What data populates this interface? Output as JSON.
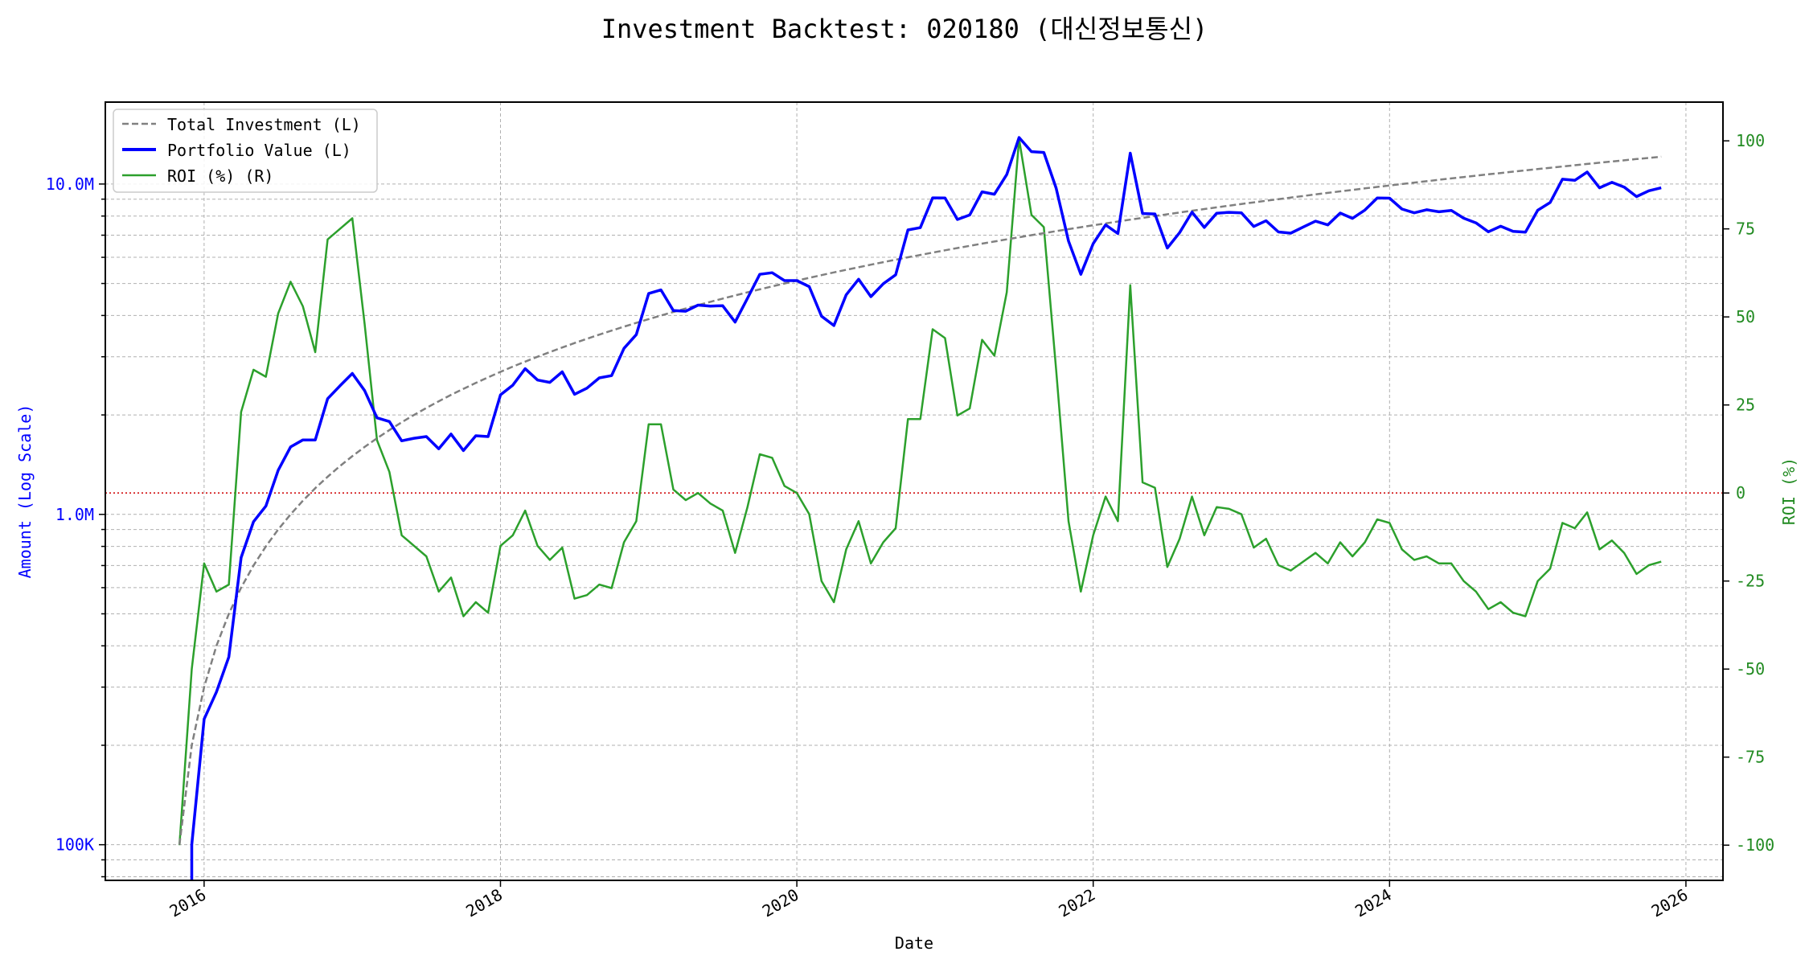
{
  "chart_data": {
    "type": "line",
    "title": "Investment Backtest: 020180 (대신정보통신)",
    "xlabel": "Date",
    "ylabel_left": "Amount (Log Scale)",
    "ylabel_right": "ROI (%)",
    "left_scale": "log",
    "left_ylim": [
      78000,
      17700000
    ],
    "right_ylim": [
      -110,
      111
    ],
    "xlim": [
      "2015-05",
      "2026-04"
    ],
    "grid": true,
    "legend_position": "top-left",
    "x_ticks": [
      "2016",
      "2018",
      "2020",
      "2022",
      "2024",
      "2026"
    ],
    "left_ticks": [
      {
        "value": 100000,
        "label": "100K"
      },
      {
        "value": 1000000,
        "label": "1.0M"
      },
      {
        "value": 10000000,
        "label": "10.0M"
      }
    ],
    "right_ticks": [
      "-100",
      "-75",
      "-50",
      "-25",
      "0",
      "25",
      "50",
      "75",
      "100"
    ],
    "reference_line": {
      "axis": "right",
      "value": 0,
      "color": "#d62728",
      "style": "dotted"
    },
    "colors": {
      "left_axis": "#0000ff",
      "right_axis": "#228b22",
      "investment": "#808080",
      "portfolio": "#0000ff",
      "roi": "#2ca02c"
    },
    "dates": [
      "2015-11",
      "2015-12",
      "2016-01",
      "2016-02",
      "2016-03",
      "2016-04",
      "2016-05",
      "2016-06",
      "2016-07",
      "2016-08",
      "2016-09",
      "2016-10",
      "2016-11",
      "2016-12",
      "2017-01",
      "2017-02",
      "2017-03",
      "2017-04",
      "2017-05",
      "2017-06",
      "2017-07",
      "2017-08",
      "2017-09",
      "2017-10",
      "2017-11",
      "2017-12",
      "2018-01",
      "2018-02",
      "2018-03",
      "2018-04",
      "2018-05",
      "2018-06",
      "2018-07",
      "2018-08",
      "2018-09",
      "2018-10",
      "2018-11",
      "2018-12",
      "2019-01",
      "2019-02",
      "2019-03",
      "2019-04",
      "2019-05",
      "2019-06",
      "2019-07",
      "2019-08",
      "2019-09",
      "2019-10",
      "2019-11",
      "2019-12",
      "2020-01",
      "2020-02",
      "2020-03",
      "2020-04",
      "2020-05",
      "2020-06",
      "2020-07",
      "2020-08",
      "2020-09",
      "2020-10",
      "2020-11",
      "2020-12",
      "2021-01",
      "2021-02",
      "2021-03",
      "2021-04",
      "2021-05",
      "2021-06",
      "2021-07",
      "2021-08",
      "2021-09",
      "2021-10",
      "2021-11",
      "2021-12",
      "2022-01",
      "2022-02",
      "2022-03",
      "2022-04",
      "2022-05",
      "2022-06",
      "2022-07",
      "2022-08",
      "2022-09",
      "2022-10",
      "2022-11",
      "2022-12",
      "2023-01",
      "2023-02",
      "2023-03",
      "2023-04",
      "2023-05",
      "2023-06",
      "2023-07",
      "2023-08",
      "2023-09",
      "2023-10",
      "2023-11",
      "2023-12",
      "2024-01",
      "2024-02",
      "2024-03",
      "2024-04",
      "2024-05",
      "2024-06",
      "2024-07",
      "2024-08",
      "2024-09",
      "2024-10",
      "2024-11",
      "2024-12",
      "2025-01",
      "2025-02",
      "2025-03",
      "2025-04",
      "2025-05",
      "2025-06",
      "2025-07",
      "2025-08",
      "2025-09",
      "2025-10",
      "2025-11"
    ],
    "series": [
      {
        "name": "Total Investment (L)",
        "axis": "left",
        "style": "dashed",
        "unit": "M",
        "values": [
          0.1,
          0.2,
          0.3,
          0.4,
          0.5,
          0.6,
          0.7,
          0.8,
          0.9,
          1.0,
          1.1,
          1.2,
          1.3,
          1.4,
          1.5,
          1.6,
          1.7,
          1.8,
          1.9,
          2.0,
          2.1,
          2.2,
          2.3,
          2.4,
          2.5,
          2.6,
          2.7,
          2.8,
          2.9,
          3.0,
          3.1,
          3.2,
          3.3,
          3.4,
          3.5,
          3.6,
          3.7,
          3.8,
          3.9,
          4.0,
          4.1,
          4.2,
          4.3,
          4.4,
          4.5,
          4.6,
          4.7,
          4.8,
          4.9,
          5.0,
          5.1,
          5.2,
          5.3,
          5.4,
          5.5,
          5.6,
          5.7,
          5.8,
          5.9,
          6.0,
          6.1,
          6.2,
          6.3,
          6.4,
          6.5,
          6.6,
          6.7,
          6.8,
          6.9,
          7.0,
          7.1,
          7.2,
          7.3,
          7.4,
          7.5,
          7.6,
          7.7,
          7.8,
          7.9,
          8.0,
          8.1,
          8.2,
          8.3,
          8.4,
          8.5,
          8.6,
          8.7,
          8.8,
          8.9,
          9.0,
          9.1,
          9.2,
          9.3,
          9.4,
          9.5,
          9.6,
          9.7,
          9.8,
          9.9,
          10.0,
          10.1,
          10.2,
          10.3,
          10.4,
          10.5,
          10.6,
          10.7,
          10.8,
          10.9,
          11.0,
          11.1,
          11.2,
          11.3,
          11.4,
          11.5,
          11.6,
          11.7,
          11.8,
          11.9,
          12.0,
          12.1
        ]
      },
      {
        "name": "Portfolio Value (L)",
        "axis": "left",
        "style": "solid",
        "unit": "M",
        "values": [
          0.0,
          0.1,
          0.24,
          0.29,
          0.37,
          0.74,
          0.95,
          1.06,
          1.36,
          1.6,
          1.68,
          1.68,
          2.24,
          2.45,
          2.67,
          2.37,
          1.96,
          1.91,
          1.67,
          1.7,
          1.72,
          1.58,
          1.75,
          1.56,
          1.73,
          1.72,
          2.3,
          2.46,
          2.76,
          2.55,
          2.51,
          2.7,
          2.31,
          2.41,
          2.59,
          2.63,
          3.18,
          3.5,
          4.66,
          4.78,
          4.14,
          4.12,
          4.3,
          4.27,
          4.28,
          3.82,
          4.51,
          5.33,
          5.39,
          5.1,
          5.1,
          4.89,
          3.98,
          3.73,
          4.62,
          5.15,
          4.56,
          4.99,
          5.31,
          7.26,
          7.38,
          9.08,
          9.07,
          7.81,
          8.06,
          9.47,
          9.31,
          10.68,
          13.83,
          12.53,
          12.46,
          9.72,
          6.72,
          5.33,
          6.6,
          7.52,
          7.08,
          12.4,
          8.14,
          8.12,
          6.4,
          7.13,
          8.22,
          7.39,
          8.16,
          8.21,
          8.18,
          7.44,
          7.74,
          7.16,
          7.1,
          7.41,
          7.72,
          7.52,
          8.17,
          7.87,
          8.34,
          9.07,
          9.06,
          8.4,
          8.18,
          8.36,
          8.24,
          8.32,
          7.88,
          7.63,
          7.17,
          7.45,
          7.19,
          7.15,
          8.33,
          8.79,
          10.34,
          10.26,
          10.87,
          9.74,
          10.12,
          9.79,
          9.16,
          9.54,
          9.74
        ]
      },
      {
        "name": "ROI (%) (R)",
        "axis": "right",
        "style": "solid",
        "unit": "%",
        "values": [
          -100,
          -50,
          -20,
          -28,
          -26,
          23,
          35,
          33,
          51,
          60,
          53,
          40,
          72,
          75,
          78,
          48,
          15,
          6,
          -12,
          -15,
          -18,
          -28,
          -24,
          -35,
          -31,
          -34,
          -15,
          -12,
          -5,
          -15,
          -19,
          -15.5,
          -30,
          -29,
          -26,
          -27,
          -14,
          -8,
          19.5,
          19.5,
          1,
          -2,
          0,
          -3,
          -5,
          -17,
          -4,
          11,
          10,
          2,
          0,
          -6,
          -25,
          -31,
          -16,
          -8,
          -20,
          -14,
          -10,
          21,
          21,
          46.5,
          44,
          22,
          24,
          43.5,
          39,
          57,
          100.5,
          79,
          75.5,
          35,
          -8,
          -28,
          -12,
          -1,
          -8,
          59,
          3,
          1.5,
          -21,
          -13,
          -1,
          -12,
          -4,
          -4.5,
          -6,
          -15.5,
          -13,
          -20.5,
          -22,
          -19.5,
          -17,
          -20,
          -14,
          -18,
          -14,
          -7.5,
          -8.5,
          -16,
          -19,
          -18,
          -20,
          -20,
          -25,
          -28,
          -33,
          -31,
          -34,
          -35,
          -25,
          -21.5,
          -8.5,
          -10,
          -5.5,
          -16,
          -13.5,
          -17,
          -23,
          -20.5,
          -19.5
        ]
      }
    ]
  }
}
